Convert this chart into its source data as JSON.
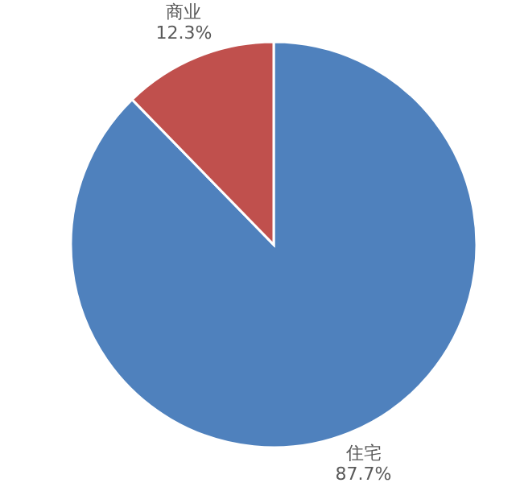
{
  "chart_data": {
    "type": "pie",
    "categories": [
      "住宅",
      "商业"
    ],
    "values": [
      87.7,
      12.3
    ],
    "colors": [
      "#4f81bd",
      "#c0504d"
    ],
    "value_labels": [
      "87.7%",
      "12.3%"
    ],
    "legend": false
  }
}
